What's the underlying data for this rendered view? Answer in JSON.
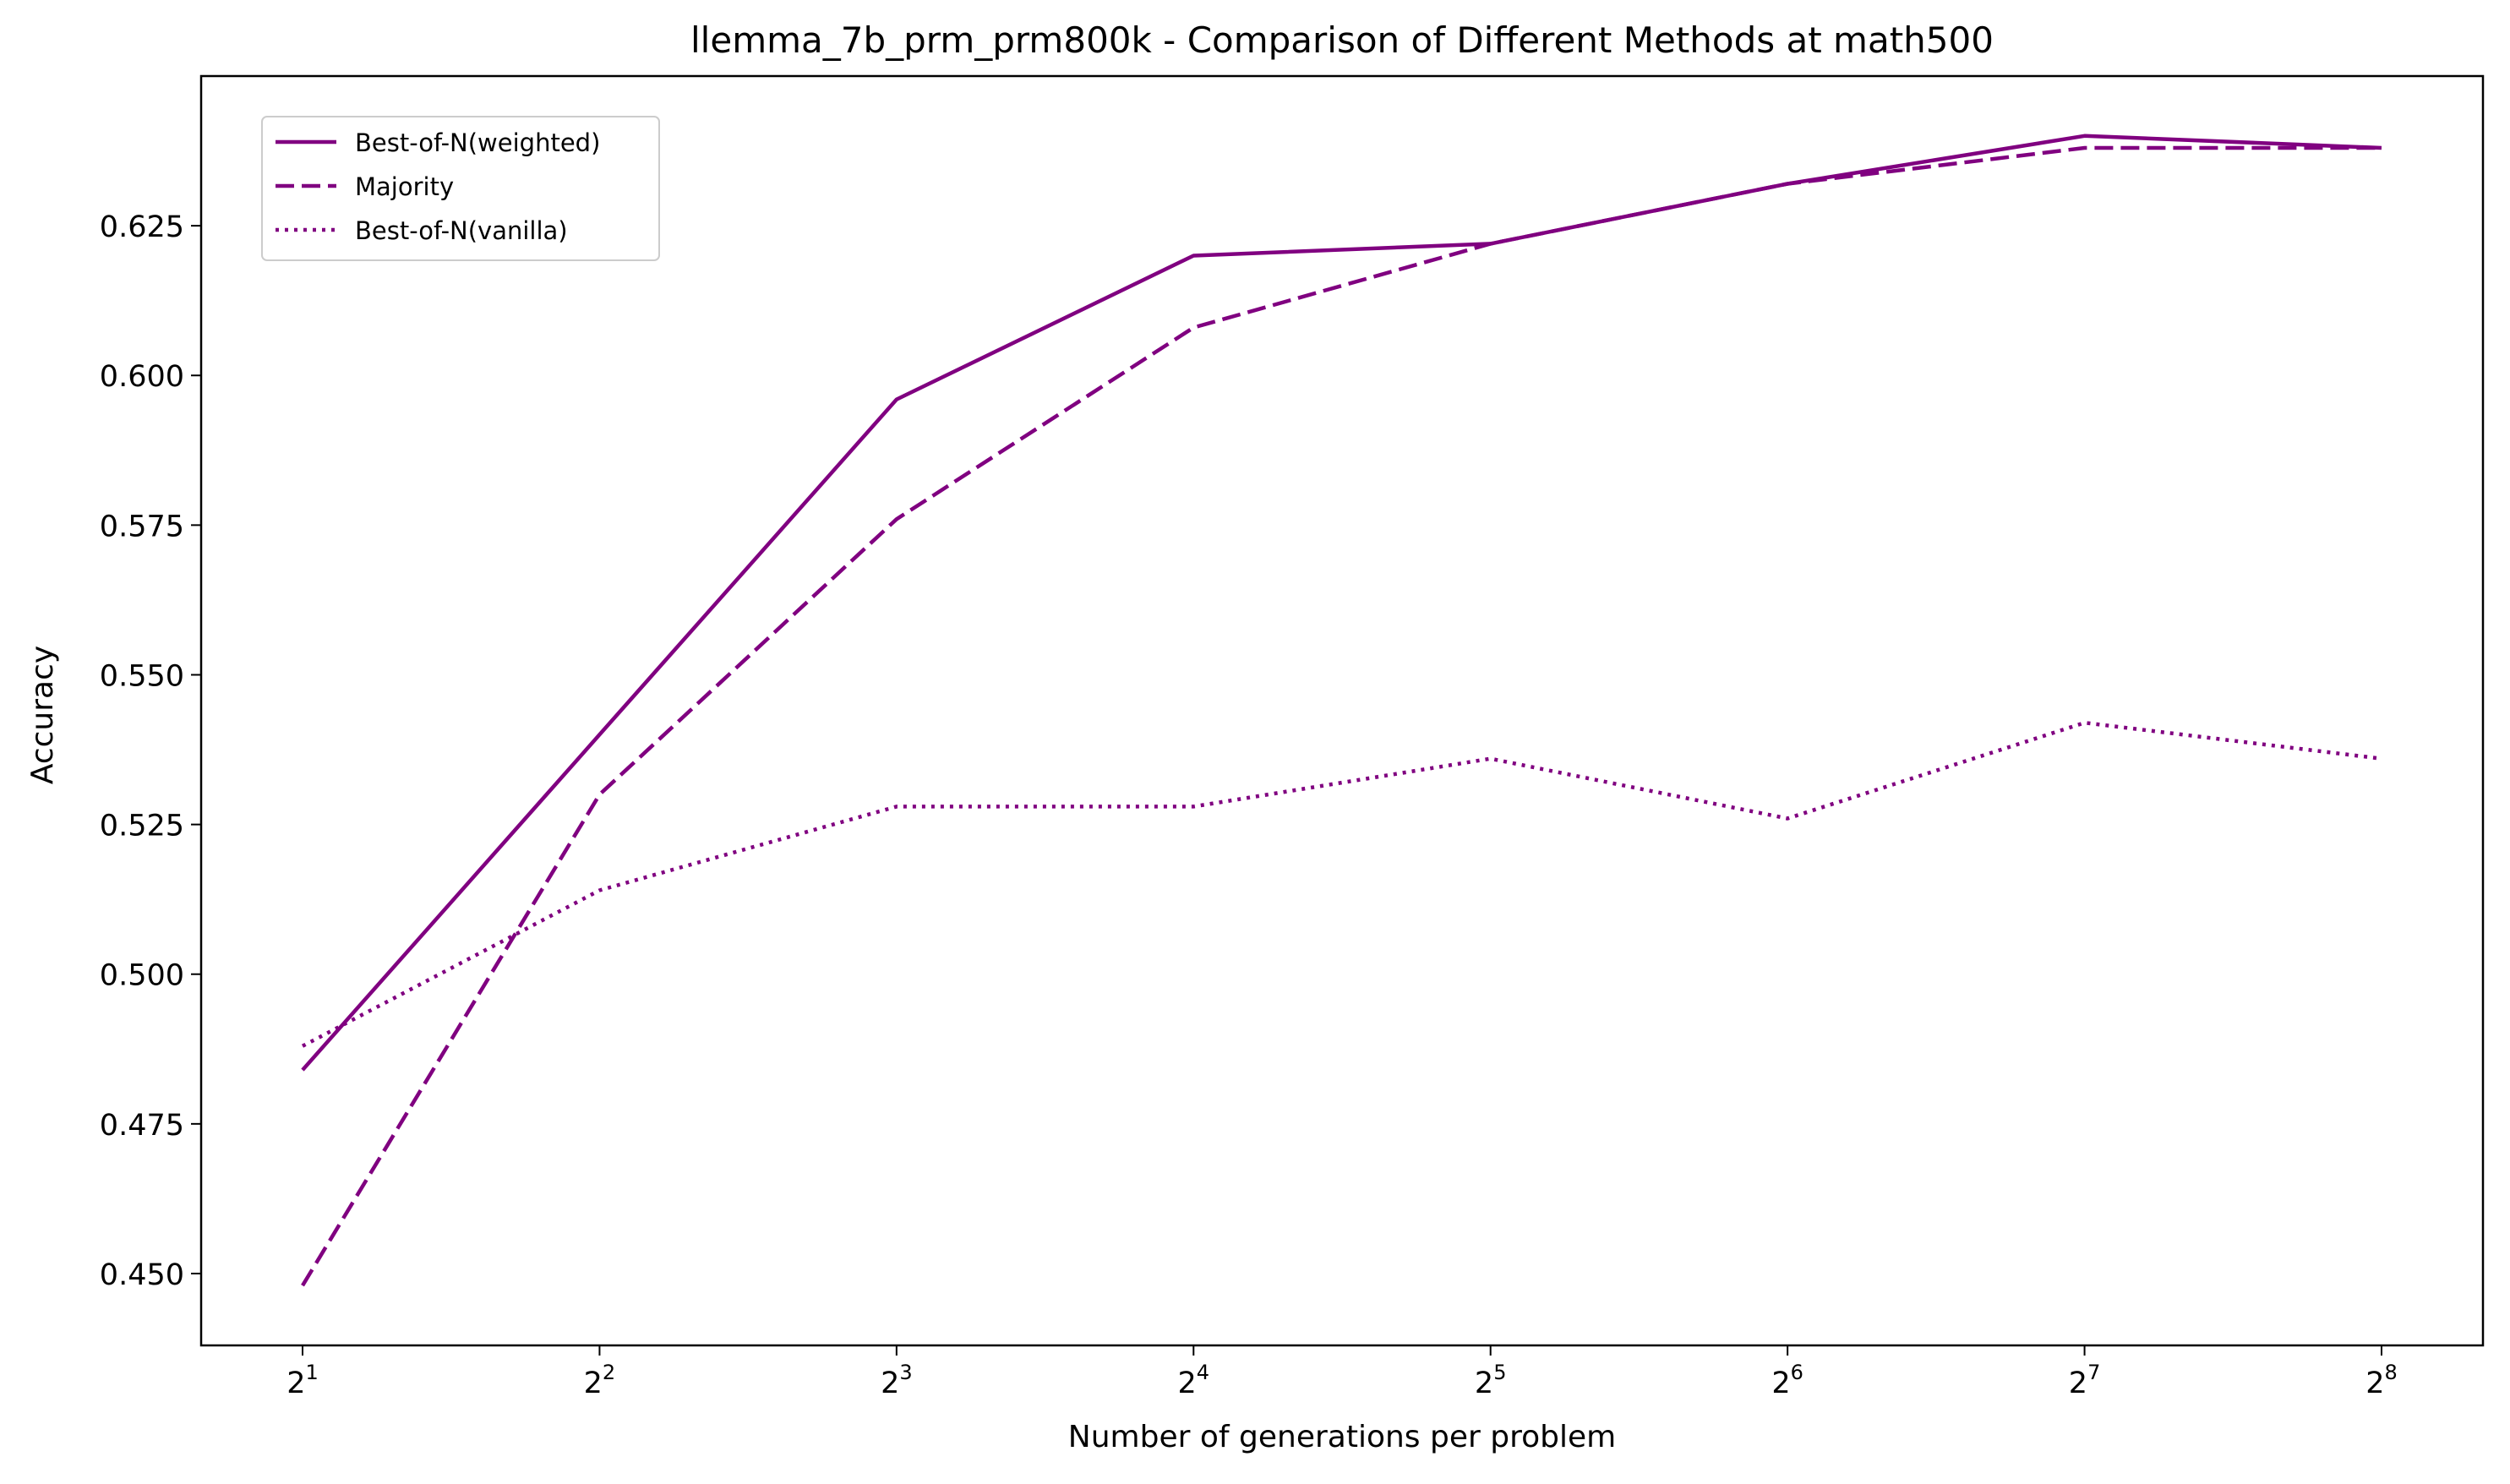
{
  "chart_data": {
    "type": "line",
    "title": "llemma_7b_prm_prm800k - Comparison of Different Methods at math500",
    "xlabel": "Number of generations per problem",
    "ylabel": "Accuracy",
    "x_scale": "log2",
    "x": [
      2,
      4,
      8,
      16,
      32,
      64,
      128,
      256
    ],
    "x_tick_labels": [
      {
        "base": "2",
        "exp": "1"
      },
      {
        "base": "2",
        "exp": "2"
      },
      {
        "base": "2",
        "exp": "3"
      },
      {
        "base": "2",
        "exp": "4"
      },
      {
        "base": "2",
        "exp": "5"
      },
      {
        "base": "2",
        "exp": "6"
      },
      {
        "base": "2",
        "exp": "7"
      },
      {
        "base": "2",
        "exp": "8"
      }
    ],
    "y_ticks": [
      0.45,
      0.475,
      0.5,
      0.525,
      0.55,
      0.575,
      0.6,
      0.625
    ],
    "y_tick_labels": [
      "0.450",
      "0.475",
      "0.500",
      "0.525",
      "0.550",
      "0.575",
      "0.600",
      "0.625"
    ],
    "ylim": [
      0.438,
      0.65
    ],
    "grid": false,
    "legend_position": "upper-left",
    "color": "#800080",
    "series": [
      {
        "name": "Best-of-N(weighted)",
        "style": "solid",
        "values": [
          0.484,
          0.54,
          0.596,
          0.62,
          0.622,
          0.632,
          0.64,
          0.638
        ]
      },
      {
        "name": "Majority",
        "style": "dashed",
        "values": [
          0.448,
          0.53,
          0.576,
          0.608,
          0.622,
          0.632,
          0.638,
          0.638
        ]
      },
      {
        "name": "Best-of-N(vanilla)",
        "style": "dotted",
        "values": [
          0.488,
          0.514,
          0.528,
          0.528,
          0.536,
          0.526,
          0.542,
          0.536
        ]
      }
    ]
  }
}
